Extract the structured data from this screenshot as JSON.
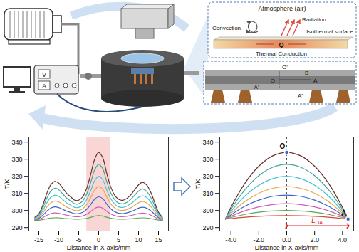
{
  "diagram": {
    "multimeter": {
      "voltage": "V",
      "current": "A"
    },
    "heat_inset": {
      "atmosphere": "Atmosphere (air)",
      "convection": "Convection",
      "radiation": "Radiation",
      "isothermal": "Isothermal surface",
      "heat": "Q",
      "conduction": "Thermal Conduction"
    },
    "sample_inset": {
      "center_top": "O'",
      "b": "B",
      "a": "A",
      "center": "O",
      "a_prime": "A'",
      "a_double_prime": "A''"
    }
  },
  "chart_data": [
    {
      "type": "line",
      "xlabel": "Distance in X-axis/mm",
      "ylabel": "T/K",
      "x": [
        -16,
        -15,
        -14,
        -13,
        -12,
        -11,
        -10,
        -9,
        -8,
        -7,
        -6,
        -5,
        -4,
        -3,
        -2,
        -1,
        0,
        1,
        2,
        3,
        4,
        5,
        6,
        7,
        8,
        9,
        10,
        11,
        12,
        13,
        14,
        15,
        16
      ],
      "series": [
        {
          "color": "#6b2e28",
          "values": [
            296,
            298,
            303,
            310,
            315,
            317,
            316,
            313,
            310,
            308,
            306,
            306,
            308,
            313,
            321,
            330,
            334,
            331,
            322,
            314,
            309,
            306.5,
            306,
            307,
            309,
            312,
            315,
            316.5,
            315,
            311,
            305,
            299,
            296
          ]
        },
        {
          "color": "#3fa796",
          "values": [
            295.6,
            297.3,
            301.4,
            307.2,
            311.3,
            313,
            312.2,
            309.7,
            307.2,
            305.6,
            303.9,
            303.9,
            305.6,
            309.7,
            316.3,
            323.7,
            327,
            324.5,
            317.1,
            310.5,
            306.4,
            304.3,
            303.9,
            304.7,
            306.4,
            308.9,
            311.3,
            312.6,
            311.3,
            308,
            303.1,
            298.1,
            295.6
          ]
        },
        {
          "color": "#46c2d6",
          "values": [
            295.3,
            296.6,
            299.9,
            304.4,
            307.7,
            309,
            308.3,
            306.4,
            304.4,
            303.1,
            301.8,
            301.8,
            303.1,
            306.4,
            311.6,
            317.4,
            320,
            318.1,
            312.2,
            307,
            303.8,
            302.1,
            301.8,
            302.5,
            303.8,
            305.7,
            307.7,
            308.6,
            307.7,
            305.1,
            301.2,
            297.3,
            295.3
          ]
        },
        {
          "color": "#e9a544",
          "values": [
            295,
            296,
            298.5,
            302,
            304.5,
            305.5,
            305,
            303.5,
            302,
            301,
            300,
            300,
            301,
            303.5,
            307.5,
            312,
            314,
            312.5,
            308,
            304,
            301.5,
            300.3,
            300,
            300.5,
            301.5,
            303,
            304.5,
            305.3,
            304.5,
            302.5,
            299.5,
            296.5,
            295
          ]
        },
        {
          "color": "#3b63c9",
          "values": [
            294.7,
            295.4,
            297.2,
            299.6,
            301.4,
            302.1,
            301.7,
            300.7,
            299.6,
            298.9,
            298.2,
            298.2,
            298.9,
            300.7,
            303.5,
            306.6,
            308,
            307,
            303.8,
            301,
            299.3,
            298.4,
            298.2,
            298.6,
            299.3,
            300.3,
            301.4,
            301.9,
            301.4,
            300,
            297.9,
            295.8,
            294.7
          ]
        },
        {
          "color": "#d15ab8",
          "values": [
            294.4,
            294.8,
            295.8,
            297.2,
            298.2,
            298.6,
            298.4,
            297.8,
            297.2,
            296.8,
            296.4,
            296.4,
            296.8,
            297.8,
            299.4,
            301.2,
            302,
            301.4,
            299.6,
            298,
            297,
            296.5,
            296.4,
            296.6,
            297,
            297.6,
            298.2,
            298.5,
            298.2,
            297.4,
            296.2,
            295,
            294.4
          ]
        },
        {
          "color": "#5aa84f",
          "values": [
            294.2,
            294.3,
            294.7,
            295.2,
            295.6,
            295.7,
            295.7,
            295.4,
            295.2,
            295.1,
            294.9,
            294.9,
            295.1,
            295.4,
            296,
            296.7,
            297,
            296.8,
            296.1,
            295.5,
            295.1,
            294.9,
            294.9,
            295,
            295.1,
            295.4,
            295.6,
            295.7,
            295.6,
            295.3,
            294.8,
            294.4,
            294.2
          ]
        }
      ],
      "highlight": [
        -3,
        3
      ],
      "xlim": [
        -17.5,
        17.5
      ],
      "xticks": [
        -15,
        -10,
        -5,
        0,
        5,
        10,
        15
      ],
      "ylim": [
        288,
        343
      ],
      "yticks": [
        290,
        300,
        310,
        320,
        330,
        340
      ]
    },
    {
      "type": "line",
      "xlabel": "Distance in X-axis/mm",
      "ylabel": "T/K",
      "x": [
        -4.4,
        -4,
        -3,
        -2,
        -1,
        0,
        1,
        2,
        3,
        4,
        4.4
      ],
      "series": [
        {
          "color": "#6b2e28",
          "values": [
            295,
            301.8,
            315.9,
            325.9,
            332,
            334,
            332,
            325.9,
            315.9,
            301.8,
            295
          ]
        },
        {
          "color": "#3fa796",
          "values": [
            295,
            300.6,
            312.1,
            320.4,
            325.3,
            327,
            325.3,
            320.4,
            312.1,
            300.6,
            295
          ]
        },
        {
          "color": "#46c2d6",
          "values": [
            295,
            299.4,
            308.4,
            314.8,
            318.7,
            320,
            318.7,
            314.8,
            308.4,
            299.4,
            295
          ]
        },
        {
          "color": "#e9a544",
          "values": [
            295,
            298.3,
            305.2,
            310.1,
            313,
            314,
            313,
            310.1,
            305.2,
            298.3,
            295
          ]
        },
        {
          "color": "#3b63c9",
          "values": [
            295,
            297.4,
            302.5,
            306.1,
            308.3,
            309,
            308.3,
            306.1,
            302.5,
            297.4,
            295
          ]
        },
        {
          "color": "#d15ab8",
          "values": [
            295,
            296.6,
            299.8,
            302.1,
            303.5,
            304,
            303.5,
            302.1,
            299.8,
            296.6,
            295
          ]
        },
        {
          "color": "#5aa84f",
          "values": [
            295,
            295.9,
            297.7,
            299,
            299.7,
            300,
            299.7,
            299,
            297.7,
            295.9,
            295
          ]
        },
        {
          "color": "#d9453c",
          "values": [
            295,
            295.3,
            296.1,
            296.6,
            296.9,
            297,
            296.9,
            296.6,
            296.1,
            295.3,
            295
          ]
        }
      ],
      "points": [
        {
          "label": "O",
          "x": 0,
          "y": 334
        },
        {
          "label": "A",
          "x": 4.4,
          "y": 295
        }
      ],
      "vline": 0,
      "span": {
        "label": "L",
        "subscript": "OA",
        "from": 0,
        "to": 4.4,
        "y": 291
      },
      "xlim": [
        -4.8,
        4.8
      ],
      "xticks": [
        {
          "value": -4,
          "label": "-4.0"
        },
        {
          "value": -2,
          "label": "-2.0"
        },
        {
          "value": 0,
          "label": "0.0"
        },
        {
          "value": 2,
          "label": "2.0"
        },
        {
          "value": 4,
          "label": "4.0"
        }
      ],
      "ylim": [
        288,
        343
      ],
      "yticks": [
        290,
        300,
        310,
        320,
        330,
        340
      ]
    }
  ]
}
